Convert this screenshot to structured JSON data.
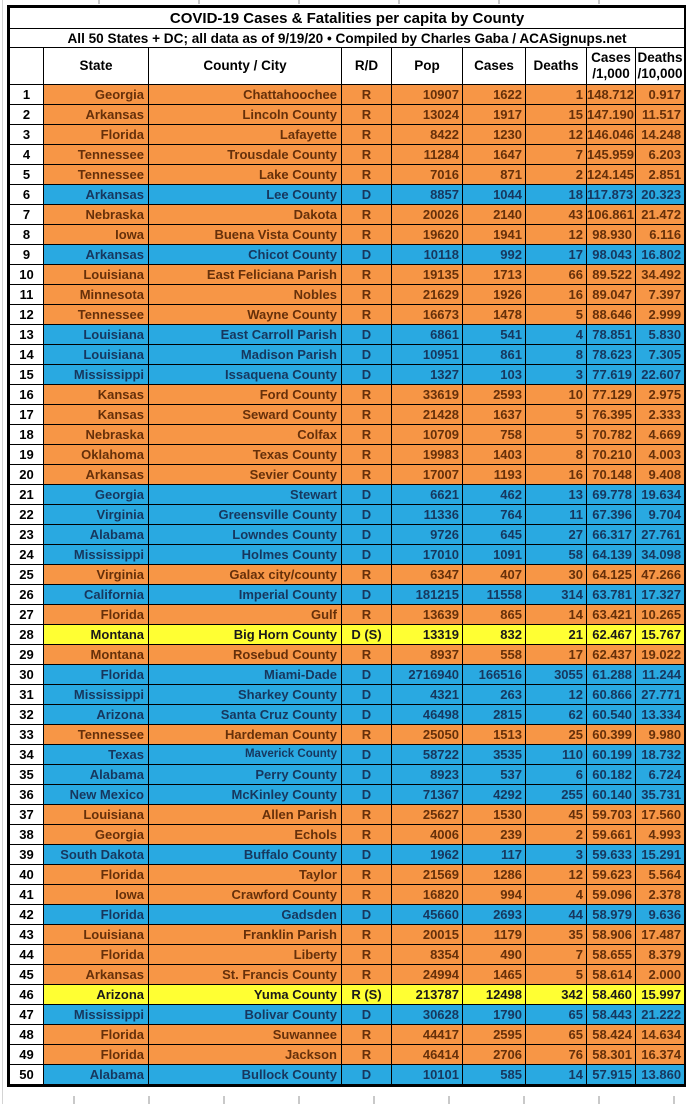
{
  "page": {
    "title": "COVID-19 Cases & Fatalities per capita by County",
    "subtitle": "All 50 States + DC; all data as of 9/19/20  • Compiled by Charles Gaba / ACASignups.net"
  },
  "colors": {
    "republican_row_bg": "#F79646",
    "republican_row_text": "#66300A",
    "democrat_row_bg": "#29A9E1",
    "democrat_row_text": "#17375E",
    "swing_row_bg": "#FFFF33",
    "swing_row_text": "#1A1A1A",
    "grid_border": "#000000",
    "header_text": "#000000"
  },
  "chart_data": {
    "type": "table",
    "title": "COVID-19 Cases & Fatalities per capita by County",
    "columns": [
      {
        "label": ""
      },
      {
        "label": "State"
      },
      {
        "label": "County / City"
      },
      {
        "label": "R/D"
      },
      {
        "label": "Pop"
      },
      {
        "label": "Cases"
      },
      {
        "label": "Deaths"
      },
      {
        "label": "Cases",
        "label2": "/1,000"
      },
      {
        "label": "Deaths",
        "label2": "/10,000"
      }
    ],
    "legend": {
      "R": "Republican county (orange)",
      "D": "Democratic county (blue)",
      "S": "Swing county (yellow)"
    },
    "rows": [
      {
        "rank": "1",
        "state": "Georgia",
        "county": "Chattahoochee",
        "rd": "R",
        "pop": "10907",
        "cases": "1622",
        "deaths": "1",
        "cases_per_1000": "148.712",
        "deaths_per_10000": "0.917",
        "color": "R"
      },
      {
        "rank": "2",
        "state": "Arkansas",
        "county": "Lincoln County",
        "rd": "R",
        "pop": "13024",
        "cases": "1917",
        "deaths": "15",
        "cases_per_1000": "147.190",
        "deaths_per_10000": "11.517",
        "color": "R"
      },
      {
        "rank": "3",
        "state": "Florida",
        "county": "Lafayette",
        "rd": "R",
        "pop": "8422",
        "cases": "1230",
        "deaths": "12",
        "cases_per_1000": "146.046",
        "deaths_per_10000": "14.248",
        "color": "R"
      },
      {
        "rank": "4",
        "state": "Tennessee",
        "county": "Trousdale County",
        "rd": "R",
        "pop": "11284",
        "cases": "1647",
        "deaths": "7",
        "cases_per_1000": "145.959",
        "deaths_per_10000": "6.203",
        "color": "R"
      },
      {
        "rank": "5",
        "state": "Tennessee",
        "county": "Lake County",
        "rd": "R",
        "pop": "7016",
        "cases": "871",
        "deaths": "2",
        "cases_per_1000": "124.145",
        "deaths_per_10000": "2.851",
        "color": "R"
      },
      {
        "rank": "6",
        "state": "Arkansas",
        "county": "Lee County",
        "rd": "D",
        "pop": "8857",
        "cases": "1044",
        "deaths": "18",
        "cases_per_1000": "117.873",
        "deaths_per_10000": "20.323",
        "color": "D"
      },
      {
        "rank": "7",
        "state": "Nebraska",
        "county": "Dakota",
        "rd": "R",
        "pop": "20026",
        "cases": "2140",
        "deaths": "43",
        "cases_per_1000": "106.861",
        "deaths_per_10000": "21.472",
        "color": "R"
      },
      {
        "rank": "8",
        "state": "Iowa",
        "county": "Buena Vista County",
        "rd": "R",
        "pop": "19620",
        "cases": "1941",
        "deaths": "12",
        "cases_per_1000": "98.930",
        "deaths_per_10000": "6.116",
        "color": "R"
      },
      {
        "rank": "9",
        "state": "Arkansas",
        "county": "Chicot County",
        "rd": "D",
        "pop": "10118",
        "cases": "992",
        "deaths": "17",
        "cases_per_1000": "98.043",
        "deaths_per_10000": "16.802",
        "color": "D"
      },
      {
        "rank": "10",
        "state": "Louisiana",
        "county": "East Feliciana Parish",
        "rd": "R",
        "pop": "19135",
        "cases": "1713",
        "deaths": "66",
        "cases_per_1000": "89.522",
        "deaths_per_10000": "34.492",
        "color": "R"
      },
      {
        "rank": "11",
        "state": "Minnesota",
        "county": "Nobles",
        "rd": "R",
        "pop": "21629",
        "cases": "1926",
        "deaths": "16",
        "cases_per_1000": "89.047",
        "deaths_per_10000": "7.397",
        "color": "R"
      },
      {
        "rank": "12",
        "state": "Tennessee",
        "county": "Wayne County",
        "rd": "R",
        "pop": "16673",
        "cases": "1478",
        "deaths": "5",
        "cases_per_1000": "88.646",
        "deaths_per_10000": "2.999",
        "color": "R"
      },
      {
        "rank": "13",
        "state": "Louisiana",
        "county": "East Carroll Parish",
        "rd": "D",
        "pop": "6861",
        "cases": "541",
        "deaths": "4",
        "cases_per_1000": "78.851",
        "deaths_per_10000": "5.830",
        "color": "D"
      },
      {
        "rank": "14",
        "state": "Louisiana",
        "county": "Madison Parish",
        "rd": "D",
        "pop": "10951",
        "cases": "861",
        "deaths": "8",
        "cases_per_1000": "78.623",
        "deaths_per_10000": "7.305",
        "color": "D"
      },
      {
        "rank": "15",
        "state": "Mississippi",
        "county": "Issaquena County",
        "rd": "D",
        "pop": "1327",
        "cases": "103",
        "deaths": "3",
        "cases_per_1000": "77.619",
        "deaths_per_10000": "22.607",
        "color": "D"
      },
      {
        "rank": "16",
        "state": "Kansas",
        "county": "Ford County",
        "rd": "R",
        "pop": "33619",
        "cases": "2593",
        "deaths": "10",
        "cases_per_1000": "77.129",
        "deaths_per_10000": "2.975",
        "color": "R"
      },
      {
        "rank": "17",
        "state": "Kansas",
        "county": "Seward County",
        "rd": "R",
        "pop": "21428",
        "cases": "1637",
        "deaths": "5",
        "cases_per_1000": "76.395",
        "deaths_per_10000": "2.333",
        "color": "R"
      },
      {
        "rank": "18",
        "state": "Nebraska",
        "county": "Colfax",
        "rd": "R",
        "pop": "10709",
        "cases": "758",
        "deaths": "5",
        "cases_per_1000": "70.782",
        "deaths_per_10000": "4.669",
        "color": "R"
      },
      {
        "rank": "19",
        "state": "Oklahoma",
        "county": "Texas County",
        "rd": "R",
        "pop": "19983",
        "cases": "1403",
        "deaths": "8",
        "cases_per_1000": "70.210",
        "deaths_per_10000": "4.003",
        "color": "R"
      },
      {
        "rank": "20",
        "state": "Arkansas",
        "county": "Sevier County",
        "rd": "R",
        "pop": "17007",
        "cases": "1193",
        "deaths": "16",
        "cases_per_1000": "70.148",
        "deaths_per_10000": "9.408",
        "color": "R"
      },
      {
        "rank": "21",
        "state": "Georgia",
        "county": "Stewart",
        "rd": "D",
        "pop": "6621",
        "cases": "462",
        "deaths": "13",
        "cases_per_1000": "69.778",
        "deaths_per_10000": "19.634",
        "color": "D"
      },
      {
        "rank": "22",
        "state": "Virginia",
        "county": "Greensville County",
        "rd": "D",
        "pop": "11336",
        "cases": "764",
        "deaths": "11",
        "cases_per_1000": "67.396",
        "deaths_per_10000": "9.704",
        "color": "D"
      },
      {
        "rank": "23",
        "state": "Alabama",
        "county": "Lowndes County",
        "rd": "D",
        "pop": "9726",
        "cases": "645",
        "deaths": "27",
        "cases_per_1000": "66.317",
        "deaths_per_10000": "27.761",
        "color": "D"
      },
      {
        "rank": "24",
        "state": "Mississippi",
        "county": "Holmes County",
        "rd": "D",
        "pop": "17010",
        "cases": "1091",
        "deaths": "58",
        "cases_per_1000": "64.139",
        "deaths_per_10000": "34.098",
        "color": "D"
      },
      {
        "rank": "25",
        "state": "Virginia",
        "county": "Galax city/county",
        "rd": "R",
        "pop": "6347",
        "cases": "407",
        "deaths": "30",
        "cases_per_1000": "64.125",
        "deaths_per_10000": "47.266",
        "color": "R"
      },
      {
        "rank": "26",
        "state": "California",
        "county": "Imperial County",
        "rd": "D",
        "pop": "181215",
        "cases": "11558",
        "deaths": "314",
        "cases_per_1000": "63.781",
        "deaths_per_10000": "17.327",
        "color": "D"
      },
      {
        "rank": "27",
        "state": "Florida",
        "county": "Gulf",
        "rd": "R",
        "pop": "13639",
        "cases": "865",
        "deaths": "14",
        "cases_per_1000": "63.421",
        "deaths_per_10000": "10.265",
        "color": "R"
      },
      {
        "rank": "28",
        "state": "Montana",
        "county": "Big Horn County",
        "rd": "D (S)",
        "pop": "13319",
        "cases": "832",
        "deaths": "21",
        "cases_per_1000": "62.467",
        "deaths_per_10000": "15.767",
        "color": "S"
      },
      {
        "rank": "29",
        "state": "Montana",
        "county": "Rosebud County",
        "rd": "R",
        "pop": "8937",
        "cases": "558",
        "deaths": "17",
        "cases_per_1000": "62.437",
        "deaths_per_10000": "19.022",
        "color": "R"
      },
      {
        "rank": "30",
        "state": "Florida",
        "county": "Miami-Dade",
        "rd": "D",
        "pop": "2716940",
        "cases": "166516",
        "deaths": "3055",
        "cases_per_1000": "61.288",
        "deaths_per_10000": "11.244",
        "color": "D"
      },
      {
        "rank": "31",
        "state": "Mississippi",
        "county": "Sharkey County",
        "rd": "D",
        "pop": "4321",
        "cases": "263",
        "deaths": "12",
        "cases_per_1000": "60.866",
        "deaths_per_10000": "27.771",
        "color": "D"
      },
      {
        "rank": "32",
        "state": "Arizona",
        "county": "Santa Cruz County",
        "rd": "D",
        "pop": "46498",
        "cases": "2815",
        "deaths": "62",
        "cases_per_1000": "60.540",
        "deaths_per_10000": "13.334",
        "color": "D"
      },
      {
        "rank": "33",
        "state": "Tennessee",
        "county": "Hardeman County",
        "rd": "R",
        "pop": "25050",
        "cases": "1513",
        "deaths": "25",
        "cases_per_1000": "60.399",
        "deaths_per_10000": "9.980",
        "color": "R"
      },
      {
        "rank": "34",
        "state": "Texas",
        "county": "Maverick County",
        "rd": "D",
        "pop": "58722",
        "cases": "3535",
        "deaths": "110",
        "cases_per_1000": "60.199",
        "deaths_per_10000": "18.732",
        "color": "D",
        "narrow": true
      },
      {
        "rank": "35",
        "state": "Alabama",
        "county": "Perry County",
        "rd": "D",
        "pop": "8923",
        "cases": "537",
        "deaths": "6",
        "cases_per_1000": "60.182",
        "deaths_per_10000": "6.724",
        "color": "D"
      },
      {
        "rank": "36",
        "state": "New Mexico",
        "county": "McKinley County",
        "rd": "D",
        "pop": "71367",
        "cases": "4292",
        "deaths": "255",
        "cases_per_1000": "60.140",
        "deaths_per_10000": "35.731",
        "color": "D"
      },
      {
        "rank": "37",
        "state": "Louisiana",
        "county": "Allen Parish",
        "rd": "R",
        "pop": "25627",
        "cases": "1530",
        "deaths": "45",
        "cases_per_1000": "59.703",
        "deaths_per_10000": "17.560",
        "color": "R"
      },
      {
        "rank": "38",
        "state": "Georgia",
        "county": "Echols",
        "rd": "R",
        "pop": "4006",
        "cases": "239",
        "deaths": "2",
        "cases_per_1000": "59.661",
        "deaths_per_10000": "4.993",
        "color": "R"
      },
      {
        "rank": "39",
        "state": "South Dakota",
        "county": "Buffalo County",
        "rd": "D",
        "pop": "1962",
        "cases": "117",
        "deaths": "3",
        "cases_per_1000": "59.633",
        "deaths_per_10000": "15.291",
        "color": "D"
      },
      {
        "rank": "40",
        "state": "Florida",
        "county": "Taylor",
        "rd": "R",
        "pop": "21569",
        "cases": "1286",
        "deaths": "12",
        "cases_per_1000": "59.623",
        "deaths_per_10000": "5.564",
        "color": "R"
      },
      {
        "rank": "41",
        "state": "Iowa",
        "county": "Crawford County",
        "rd": "R",
        "pop": "16820",
        "cases": "994",
        "deaths": "4",
        "cases_per_1000": "59.096",
        "deaths_per_10000": "2.378",
        "color": "R"
      },
      {
        "rank": "42",
        "state": "Florida",
        "county": "Gadsden",
        "rd": "D",
        "pop": "45660",
        "cases": "2693",
        "deaths": "44",
        "cases_per_1000": "58.979",
        "deaths_per_10000": "9.636",
        "color": "D"
      },
      {
        "rank": "43",
        "state": "Louisiana",
        "county": "Franklin Parish",
        "rd": "R",
        "pop": "20015",
        "cases": "1179",
        "deaths": "35",
        "cases_per_1000": "58.906",
        "deaths_per_10000": "17.487",
        "color": "R"
      },
      {
        "rank": "44",
        "state": "Florida",
        "county": "Liberty",
        "rd": "R",
        "pop": "8354",
        "cases": "490",
        "deaths": "7",
        "cases_per_1000": "58.655",
        "deaths_per_10000": "8.379",
        "color": "R"
      },
      {
        "rank": "45",
        "state": "Arkansas",
        "county": "St. Francis County",
        "rd": "R",
        "pop": "24994",
        "cases": "1465",
        "deaths": "5",
        "cases_per_1000": "58.614",
        "deaths_per_10000": "2.000",
        "color": "R"
      },
      {
        "rank": "46",
        "state": "Arizona",
        "county": "Yuma County",
        "rd": "R (S)",
        "pop": "213787",
        "cases": "12498",
        "deaths": "342",
        "cases_per_1000": "58.460",
        "deaths_per_10000": "15.997",
        "color": "S"
      },
      {
        "rank": "47",
        "state": "Mississippi",
        "county": "Bolivar County",
        "rd": "D",
        "pop": "30628",
        "cases": "1790",
        "deaths": "65",
        "cases_per_1000": "58.443",
        "deaths_per_10000": "21.222",
        "color": "D"
      },
      {
        "rank": "48",
        "state": "Florida",
        "county": "Suwannee",
        "rd": "R",
        "pop": "44417",
        "cases": "2595",
        "deaths": "65",
        "cases_per_1000": "58.424",
        "deaths_per_10000": "14.634",
        "color": "R"
      },
      {
        "rank": "49",
        "state": "Florida",
        "county": "Jackson",
        "rd": "R",
        "pop": "46414",
        "cases": "2706",
        "deaths": "76",
        "cases_per_1000": "58.301",
        "deaths_per_10000": "16.374",
        "color": "R"
      },
      {
        "rank": "50",
        "state": "Alabama",
        "county": "Bullock County",
        "rd": "D",
        "pop": "10101",
        "cases": "585",
        "deaths": "14",
        "cases_per_1000": "57.915",
        "deaths_per_10000": "13.860",
        "color": "D"
      }
    ]
  }
}
